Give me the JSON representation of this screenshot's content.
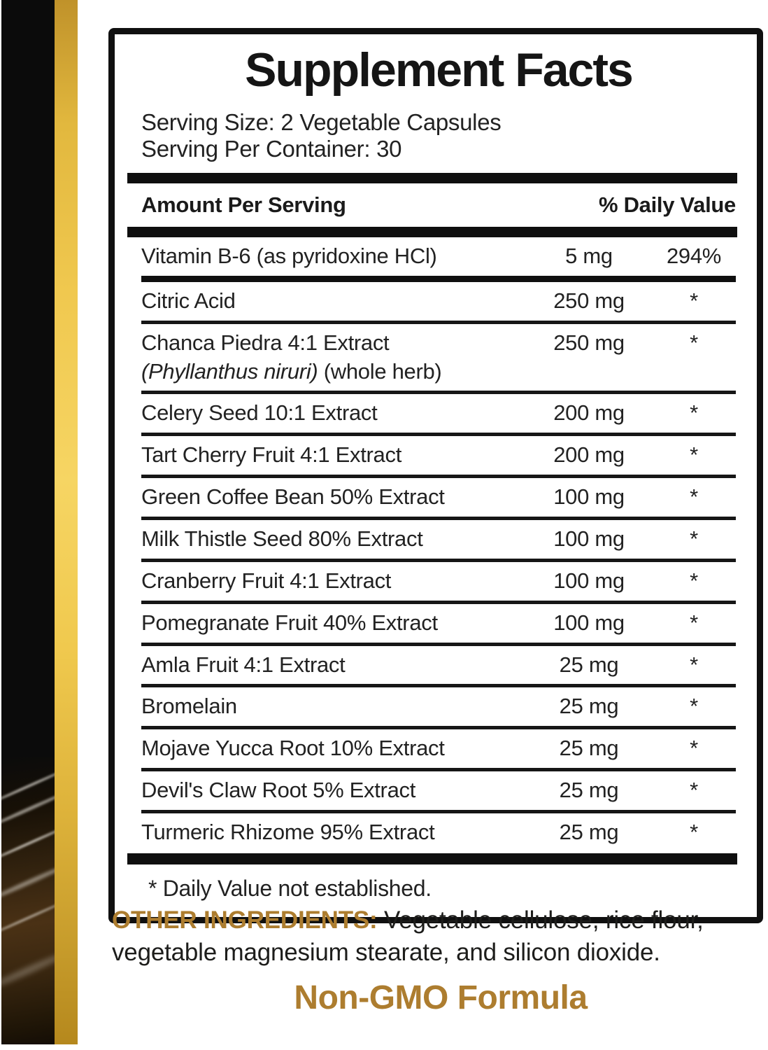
{
  "colors": {
    "gold": "#ad7d2f",
    "ink": "#1d1d1b",
    "stripe-gold-light": "#f6d563",
    "stripe-gold-dark": "#b5881d"
  },
  "panel": {
    "title": "Supplement Facts",
    "serving_size": "Serving Size: 2 Vegetable Capsules",
    "servings_per_container": "Serving Per Container: 30",
    "columns": {
      "amount_header": "Amount Per Serving",
      "dv_header": "% Daily Value"
    },
    "rows": [
      {
        "name": "Vitamin B-6 (as pyridoxine HCl)",
        "amount": "5 mg",
        "dv": "294%"
      },
      {
        "name": "Citric Acid",
        "amount": "250 mg",
        "dv": "*"
      },
      {
        "name": "Chanca Piedra 4:1 Extract",
        "name_latin": "(Phyllanthus niruri)",
        "name_note": " (whole herb)",
        "amount": "250 mg",
        "dv": "*"
      },
      {
        "name": "Celery Seed 10:1 Extract",
        "amount": "200 mg",
        "dv": "*"
      },
      {
        "name": "Tart Cherry Fruit 4:1 Extract",
        "amount": "200 mg",
        "dv": "*"
      },
      {
        "name": "Green Coffee Bean 50% Extract",
        "amount": "100 mg",
        "dv": "*"
      },
      {
        "name": "Milk Thistle Seed 80% Extract",
        "amount": "100 mg",
        "dv": "*"
      },
      {
        "name": "Cranberry Fruit 4:1 Extract",
        "amount": "100 mg",
        "dv": "*"
      },
      {
        "name": "Pomegranate Fruit 40% Extract",
        "amount": "100 mg",
        "dv": "*"
      },
      {
        "name": "Amla Fruit 4:1 Extract",
        "amount": "25 mg",
        "dv": "*"
      },
      {
        "name": "Bromelain",
        "amount": "25 mg",
        "dv": "*"
      },
      {
        "name": "Mojave Yucca Root 10% Extract",
        "amount": "25 mg",
        "dv": "*"
      },
      {
        "name": "Devil's Claw Root 5% Extract",
        "amount": "25 mg",
        "dv": "*"
      },
      {
        "name": "Turmeric Rhizome 95% Extract",
        "amount": "25 mg",
        "dv": "*"
      }
    ],
    "footnote": "* Daily Value not established."
  },
  "other_ingredients": {
    "label": "OTHER INGREDIENTS:",
    "text": " Vegetable cellulose, rice flour, vegetable magnesium stearate, and silicon dioxide."
  },
  "non_gmo": {
    "text": "Non-GMO Formula"
  }
}
